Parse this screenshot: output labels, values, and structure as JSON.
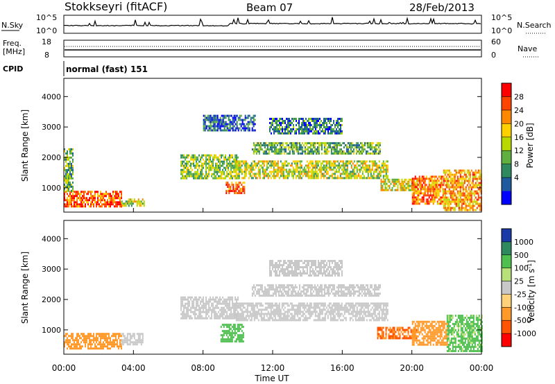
{
  "header": {
    "station": "Stokkseyri (fitACF)",
    "beam": "Beam 07",
    "date": "28/Feb/2013"
  },
  "noise_panel": {
    "left_label": "N.Sky",
    "left_ticks": [
      "10^5",
      "10^0"
    ],
    "right_ticks": [
      "10^5",
      "10^0"
    ],
    "right_label": "N.Search"
  },
  "freq_panel": {
    "left_label_1": "Freq.",
    "left_label_2": "[MHz]",
    "left_ticks": [
      "18",
      "8"
    ],
    "right_ticks": [
      "60",
      "0"
    ],
    "right_label": "Nave"
  },
  "cpid_panel": {
    "label": "CPID",
    "text": "normal (fast) 151"
  },
  "chart_data": [
    {
      "type": "heatmap",
      "quantity": "power",
      "ylabel": "Slant Range [km]",
      "xlabel": "",
      "xlim_hours": [
        0,
        24
      ],
      "ylim": [
        200,
        4600
      ],
      "yticks": [
        "1000",
        "2000",
        "3000",
        "4000"
      ],
      "colorbar_label": "Power [dB]",
      "colorbar_ticks": [
        "28",
        "24",
        "20",
        "16",
        "12",
        "8",
        "4"
      ],
      "colorbar_colors": [
        "#ff0000",
        "#ff4400",
        "#ff8800",
        "#ffd000",
        "#b8d800",
        "#60b040",
        "#2e8a5e",
        "#1f5a9e",
        "#0000ff"
      ],
      "echo_regions": [
        {
          "t0": 0.0,
          "t1": 3.3,
          "r0": 400,
          "r1": 900,
          "level": 26
        },
        {
          "t0": 0.0,
          "t1": 0.5,
          "r0": 900,
          "r1": 2300,
          "level": 12
        },
        {
          "t0": 3.3,
          "t1": 4.6,
          "r0": 400,
          "r1": 650,
          "level": 16
        },
        {
          "t0": 6.7,
          "t1": 10.0,
          "r0": 1300,
          "r1": 2100,
          "level": 14
        },
        {
          "t0": 9.3,
          "t1": 10.4,
          "r0": 800,
          "r1": 1200,
          "level": 26
        },
        {
          "t0": 9.8,
          "t1": 18.6,
          "r0": 1300,
          "r1": 1900,
          "level": 16
        },
        {
          "t0": 10.8,
          "t1": 18.2,
          "r0": 2100,
          "r1": 2500,
          "level": 12
        },
        {
          "t0": 11.8,
          "t1": 16.0,
          "r0": 2800,
          "r1": 3300,
          "level": 8
        },
        {
          "t0": 8.0,
          "t1": 11.0,
          "r0": 2900,
          "r1": 3400,
          "level": 6
        },
        {
          "t0": 18.2,
          "t1": 20.3,
          "r0": 900,
          "r1": 1300,
          "level": 18
        },
        {
          "t0": 20.0,
          "t1": 21.8,
          "r0": 500,
          "r1": 1400,
          "level": 24
        },
        {
          "t0": 21.8,
          "t1": 24.0,
          "r0": 300,
          "r1": 1600,
          "level": 22
        }
      ]
    },
    {
      "type": "heatmap",
      "quantity": "velocity",
      "ylabel": "Slant Range [km]",
      "xlabel": "Time UT",
      "xlim_hours": [
        0,
        24
      ],
      "ylim": [
        200,
        4600
      ],
      "yticks": [
        "1000",
        "2000",
        "3000",
        "4000"
      ],
      "xticks": [
        "00:00",
        "04:00",
        "08:00",
        "12:00",
        "16:00",
        "20:00",
        "00:00"
      ],
      "colorbar_label": "Velocity [m s^-1]",
      "colorbar_ticks": [
        "1000",
        "500",
        "100",
        "25",
        "-25",
        "-100",
        "-500",
        "-1000"
      ],
      "colorbar_colors": [
        "#1a3aa8",
        "#2e8a5e",
        "#4fbf4f",
        "#b8e07a",
        "#c8c8c8",
        "#ffd27a",
        "#ff9a2a",
        "#ff5500",
        "#ff0000"
      ],
      "echo_regions": [
        {
          "t0": 0.0,
          "t1": 3.3,
          "r0": 400,
          "r1": 900,
          "level": -200
        },
        {
          "t0": 3.3,
          "t1": 4.5,
          "r0": 500,
          "r1": 900,
          "level": 0
        },
        {
          "t0": 6.7,
          "t1": 10.0,
          "r0": 1400,
          "r1": 2100,
          "level": 0
        },
        {
          "t0": 9.0,
          "t1": 10.3,
          "r0": 600,
          "r1": 1200,
          "level": 300
        },
        {
          "t0": 9.8,
          "t1": 18.6,
          "r0": 1300,
          "r1": 1900,
          "level": 0
        },
        {
          "t0": 10.8,
          "t1": 18.2,
          "r0": 2100,
          "r1": 2500,
          "level": 0
        },
        {
          "t0": 11.8,
          "t1": 16.0,
          "r0": 2800,
          "r1": 3300,
          "level": 0
        },
        {
          "t0": 18.0,
          "t1": 20.3,
          "r0": 700,
          "r1": 1100,
          "level": -600
        },
        {
          "t0": 20.0,
          "t1": 22.0,
          "r0": 500,
          "r1": 1300,
          "level": -300
        },
        {
          "t0": 22.0,
          "t1": 24.0,
          "r0": 300,
          "r1": 1500,
          "level": 150
        }
      ]
    }
  ]
}
